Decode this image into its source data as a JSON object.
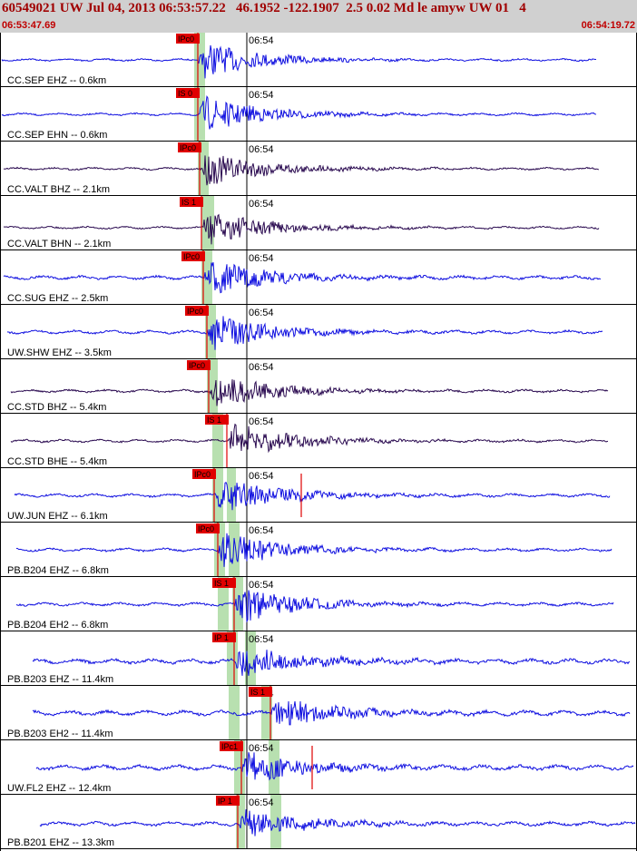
{
  "header": {
    "title": "60549021 UW Jul 04, 2013 06:53:57.22   46.1952 -122.1907  2.5 0.02 Md le amyw UW 01   4",
    "time_start": "06:53:47.69",
    "time_end": "06:54:19.72"
  },
  "colors": {
    "trace_blue": "#1010e0",
    "trace_dark": "#2a0a50",
    "pick_red": "#e00000",
    "window_green": "#b8e0b0",
    "grid": "#000000"
  },
  "minute_label": "06:54",
  "traces": [
    {
      "label": "CC.SEP EHZ -- 0.6km",
      "pick": "IPc0",
      "color": "blue"
    },
    {
      "label": "CC.SEP EHN -- 0.6km",
      "pick": "IS 0",
      "color": "blue"
    },
    {
      "label": "CC.VALT BHZ -- 2.1km",
      "pick": "IPc0",
      "color": "dark"
    },
    {
      "label": "CC.VALT BHN -- 2.1km",
      "pick": "IS 1",
      "color": "dark"
    },
    {
      "label": "CC.SUG EHZ -- 2.5km",
      "pick": "IPc0",
      "color": "blue"
    },
    {
      "label": "UW.SHW EHZ -- 3.5km",
      "pick": "IPc0",
      "color": "blue"
    },
    {
      "label": "CC.STD BHZ -- 5.4km",
      "pick": "IPc0",
      "color": "dark"
    },
    {
      "label": "CC.STD BHE -- 5.4km",
      "pick": "IS 1",
      "color": "dark"
    },
    {
      "label": "UW.JUN EHZ -- 6.1km",
      "pick": "IPc0",
      "color": "blue"
    },
    {
      "label": "PB.B204 EHZ -- 6.8km",
      "pick": "IPc0",
      "color": "blue"
    },
    {
      "label": "PB.B204 EH2 -- 6.8km",
      "pick": "IS 1",
      "color": "blue"
    },
    {
      "label": "PB.B203 EHZ -- 11.4km",
      "pick": "IP 1",
      "color": "blue"
    },
    {
      "label": "PB.B203 EH2 -- 11.4km",
      "pick": "IS 1",
      "color": "blue"
    },
    {
      "label": "UW.FL2 EHZ -- 12.4km",
      "pick": "IPc1",
      "color": "blue"
    },
    {
      "label": "PB.B201 EHZ -- 13.3km",
      "pick": "IP 1",
      "color": "blue"
    }
  ]
}
